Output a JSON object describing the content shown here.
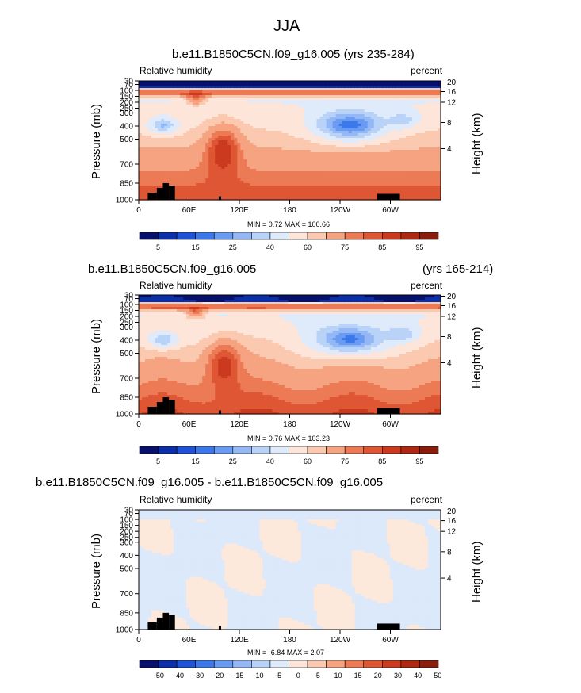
{
  "figure_title": "JJA",
  "chart_data": [
    {
      "type": "heatmap",
      "case_title": "b.e11.B1850C5CN.f09_g16.005",
      "years": "(yrs 235-284)",
      "field_label": "Relative humidity",
      "units": "percent",
      "ylabel": "Pressure (mb)",
      "y2label": "Height (km)",
      "pressure_ticks": [
        "30",
        "70",
        "100",
        "150",
        "200",
        "250",
        "300",
        "400",
        "500",
        "700",
        "850",
        "1000"
      ],
      "height_ticks": [
        "20",
        "16",
        "12",
        "8",
        "4"
      ],
      "lon_ticks": [
        "0",
        "60E",
        "120E",
        "180",
        "120W",
        "60W"
      ],
      "min": "0.72",
      "max": "100.66",
      "stats_text": "MIN =   0.72  MAX = 100.66",
      "contour_levels": [
        "5",
        "15",
        "25",
        "40",
        "60",
        "75",
        "85",
        "95"
      ],
      "colorbar_colors": [
        "#08106e",
        "#0a2fa8",
        "#1f52d6",
        "#3d78ea",
        "#6a9bf2",
        "#93b8f5",
        "#b9d3f8",
        "#dfeafb",
        "#fde6d9",
        "#fbc9b0",
        "#f5a381",
        "#ec7b55",
        "#df5634",
        "#cb3a1e",
        "#ad2712",
        "#8a1c0c"
      ]
    },
    {
      "type": "heatmap",
      "case_title": "b.e11.B1850C5CN.f09_g16.005",
      "years": "(yrs 165-214)",
      "field_label": "Relative humidity",
      "units": "percent",
      "ylabel": "Pressure (mb)",
      "y2label": "Height (km)",
      "pressure_ticks": [
        "30",
        "70",
        "100",
        "150",
        "200",
        "250",
        "300",
        "400",
        "500",
        "700",
        "850",
        "1000"
      ],
      "height_ticks": [
        "20",
        "16",
        "12",
        "8",
        "4"
      ],
      "lon_ticks": [
        "0",
        "60E",
        "120E",
        "180",
        "120W",
        "60W"
      ],
      "min": "0.76",
      "max": "103.23",
      "stats_text": "MIN =   0.76  MAX = 103.23",
      "contour_levels": [
        "5",
        "15",
        "25",
        "40",
        "60",
        "75",
        "85",
        "95"
      ],
      "colorbar_colors": [
        "#08106e",
        "#0a2fa8",
        "#1f52d6",
        "#3d78ea",
        "#6a9bf2",
        "#93b8f5",
        "#b9d3f8",
        "#dfeafb",
        "#fde6d9",
        "#fbc9b0",
        "#f5a381",
        "#ec7b55",
        "#df5634",
        "#cb3a1e",
        "#ad2712",
        "#8a1c0c"
      ]
    },
    {
      "type": "heatmap",
      "case_title": "b.e11.B1850C5CN.f09_g16.005 - b.e11.B1850C5CN.f09_g16.005",
      "field_label": "Relative humidity",
      "units": "percent",
      "ylabel": "Pressure (mb)",
      "y2label": "Height (km)",
      "pressure_ticks": [
        "30",
        "70",
        "100",
        "150",
        "200",
        "250",
        "300",
        "400",
        "500",
        "700",
        "850",
        "1000"
      ],
      "height_ticks": [
        "20",
        "16",
        "12",
        "8",
        "4"
      ],
      "lon_ticks": [
        "0",
        "60E",
        "120E",
        "180",
        "120W",
        "60W"
      ],
      "min": "-6.84",
      "max": "2.07",
      "stats_text": "MIN =  -6.84  MAX =   2.07",
      "contour_levels": [
        "-50",
        "-40",
        "-30",
        "-20",
        "-15",
        "-10",
        "-5",
        "0",
        "5",
        "10",
        "15",
        "20",
        "30",
        "40",
        "50"
      ],
      "colorbar_colors": [
        "#08106e",
        "#0a2fa8",
        "#1f52d6",
        "#3d78ea",
        "#6a9bf2",
        "#93b8f5",
        "#b9d3f8",
        "#dfeafb",
        "#fde6d9",
        "#fbc9b0",
        "#f5a381",
        "#ec7b55",
        "#df5634",
        "#cb3a1e",
        "#ad2712",
        "#8a1c0c"
      ]
    }
  ]
}
